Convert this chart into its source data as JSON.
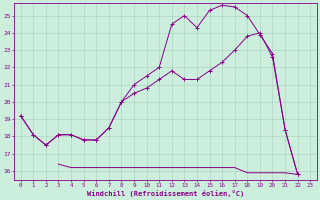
{
  "xlabel": "Windchill (Refroidissement éolien,°C)",
  "background_color": "#cceedd",
  "grid_color": "#aaccbb",
  "line_color": "#880088",
  "xlim": [
    -0.5,
    23.5
  ],
  "ylim": [
    15.5,
    25.7
  ],
  "yticks": [
    16,
    17,
    18,
    19,
    20,
    21,
    22,
    23,
    24,
    25
  ],
  "xticks": [
    0,
    1,
    2,
    3,
    4,
    5,
    6,
    7,
    8,
    9,
    10,
    11,
    12,
    13,
    14,
    15,
    16,
    17,
    18,
    19,
    20,
    21,
    22,
    23
  ],
  "curve1_x": [
    0,
    1,
    2,
    3,
    4,
    5,
    6,
    7,
    8,
    9,
    10,
    11,
    12,
    13,
    14,
    15,
    16,
    17,
    18,
    19,
    20,
    21,
    22
  ],
  "curve1_y": [
    19.2,
    18.1,
    17.5,
    18.1,
    18.1,
    17.8,
    17.8,
    18.5,
    20.0,
    21.0,
    21.5,
    22.0,
    24.5,
    25.0,
    24.3,
    25.3,
    25.6,
    25.5,
    25.0,
    23.9,
    22.8,
    18.4,
    15.8
  ],
  "curve2_x": [
    0,
    1,
    2,
    3,
    4,
    5,
    6,
    7,
    8,
    9,
    10,
    11,
    12,
    13,
    14,
    15,
    16,
    17,
    18,
    19,
    20,
    21,
    22
  ],
  "curve2_y": [
    19.2,
    18.1,
    17.5,
    18.1,
    18.1,
    17.8,
    17.8,
    18.5,
    20.0,
    20.5,
    20.8,
    21.3,
    21.8,
    21.3,
    21.3,
    21.8,
    22.3,
    23.0,
    23.8,
    24.0,
    22.6,
    18.4,
    15.8
  ],
  "curve3_x": [
    3,
    4,
    5,
    6,
    7,
    8,
    9,
    10,
    11,
    12,
    13,
    14,
    15,
    16,
    17,
    18,
    19,
    20,
    21,
    22
  ],
  "curve3_y": [
    16.4,
    16.2,
    16.2,
    16.2,
    16.2,
    16.2,
    16.2,
    16.2,
    16.2,
    16.2,
    16.2,
    16.2,
    16.2,
    16.2,
    16.2,
    15.9,
    15.9,
    15.9,
    15.9,
    15.8
  ]
}
